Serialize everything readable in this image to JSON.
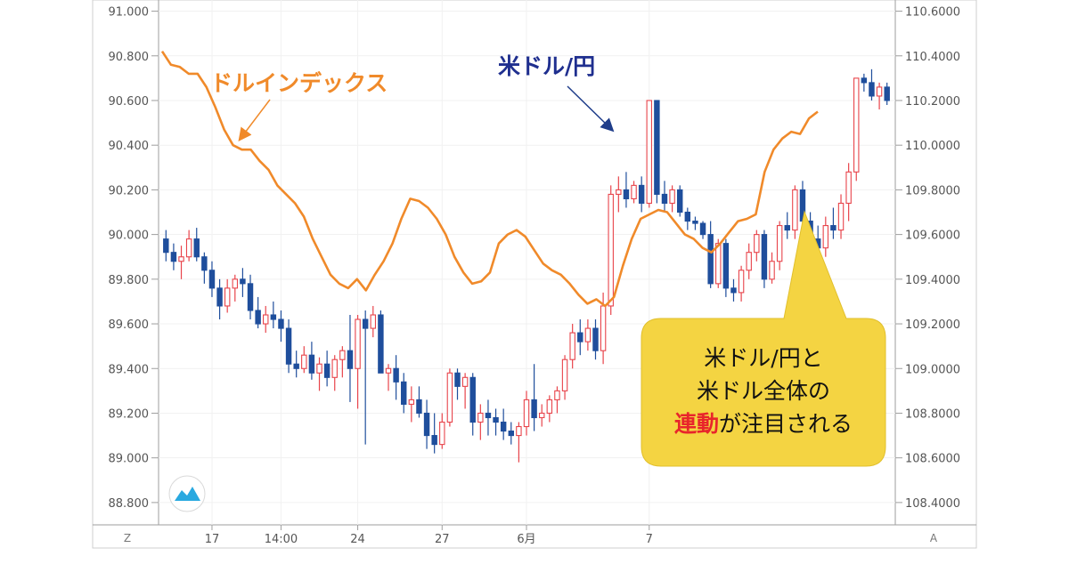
{
  "chart_data": {
    "type": "candlestick+line",
    "left_axis": {
      "ticks": [
        "91.000",
        "90.800",
        "90.600",
        "90.400",
        "90.200",
        "90.000",
        "89.800",
        "89.600",
        "89.400",
        "89.200",
        "89.000",
        "88.800"
      ],
      "ylim": [
        88.7,
        91.05
      ]
    },
    "right_axis": {
      "ticks": [
        "110.6000",
        "110.4000",
        "110.2000",
        "110.0000",
        "109.8000",
        "109.6000",
        "109.4000",
        "109.2000",
        "109.0000",
        "108.8000",
        "108.6000",
        "108.4000"
      ],
      "ylim": [
        108.3,
        110.65
      ]
    },
    "x_ticks": [
      "17",
      "14:00",
      "24",
      "27",
      "6月",
      "7"
    ],
    "x_tick_index": [
      6,
      15,
      25,
      36,
      47,
      63
    ],
    "corner_left": "Z",
    "corner_right": "A",
    "grid": true,
    "series": [
      {
        "name": "ドルインデックス",
        "axis": "left",
        "style": "line",
        "color": "#f08a2a",
        "values": [
          90.82,
          90.76,
          90.75,
          90.72,
          90.72,
          90.66,
          90.57,
          90.47,
          90.4,
          90.38,
          90.38,
          90.33,
          90.29,
          90.22,
          90.18,
          90.14,
          90.08,
          89.98,
          89.9,
          89.82,
          89.78,
          89.76,
          89.8,
          89.75,
          89.82,
          89.88,
          89.96,
          90.07,
          90.16,
          90.15,
          90.12,
          90.07,
          90.0,
          89.9,
          89.83,
          89.78,
          89.79,
          89.83,
          89.96,
          90.0,
          90.02,
          89.99,
          89.93,
          89.87,
          89.84,
          89.82,
          89.78,
          89.73,
          89.69,
          89.71,
          89.68,
          89.72,
          89.86,
          89.98,
          90.07,
          90.09,
          90.11,
          90.1,
          90.05,
          90.0,
          89.98,
          89.94,
          89.92,
          89.96,
          90.01,
          90.06,
          90.07,
          90.09,
          90.28,
          90.38,
          90.43,
          90.46,
          90.45,
          90.52,
          90.55
        ]
      },
      {
        "name": "米ドル/円",
        "axis": "right",
        "style": "candlestick",
        "up_color": "#e8444b",
        "down_color": "#1f4e9c",
        "ohlc": [
          [
            109.58,
            109.62,
            109.48,
            109.52
          ],
          [
            109.52,
            109.56,
            109.44,
            109.48
          ],
          [
            109.48,
            109.55,
            109.4,
            109.5
          ],
          [
            109.5,
            109.62,
            109.48,
            109.58
          ],
          [
            109.58,
            109.63,
            109.48,
            109.5
          ],
          [
            109.5,
            109.52,
            109.38,
            109.44
          ],
          [
            109.44,
            109.48,
            109.32,
            109.36
          ],
          [
            109.36,
            109.4,
            109.22,
            109.28
          ],
          [
            109.28,
            109.4,
            109.25,
            109.36
          ],
          [
            109.36,
            109.42,
            109.3,
            109.4
          ],
          [
            109.4,
            109.45,
            109.32,
            109.38
          ],
          [
            109.38,
            109.42,
            109.22,
            109.26
          ],
          [
            109.26,
            109.32,
            109.18,
            109.2
          ],
          [
            109.2,
            109.28,
            109.16,
            109.24
          ],
          [
            109.24,
            109.3,
            109.18,
            109.22
          ],
          [
            109.22,
            109.26,
            109.12,
            109.18
          ],
          [
            109.18,
            109.22,
            108.98,
            109.02
          ],
          [
            109.02,
            109.08,
            108.96,
            109.0
          ],
          [
            109.0,
            109.1,
            108.98,
            109.06
          ],
          [
            109.06,
            109.12,
            108.95,
            108.98
          ],
          [
            108.98,
            109.05,
            108.9,
            109.02
          ],
          [
            109.02,
            109.08,
            108.92,
            108.96
          ],
          [
            108.96,
            109.06,
            108.9,
            109.04
          ],
          [
            109.04,
            109.1,
            108.96,
            109.08
          ],
          [
            109.08,
            109.24,
            108.85,
            109.0
          ],
          [
            109.0,
            109.24,
            108.82,
            109.22
          ],
          [
            109.22,
            109.26,
            108.66,
            109.18
          ],
          [
            109.18,
            109.28,
            109.14,
            109.24
          ],
          [
            109.24,
            109.26,
            108.98,
            108.98
          ],
          [
            108.98,
            109.02,
            108.9,
            109.0
          ],
          [
            109.0,
            109.06,
            108.86,
            108.94
          ],
          [
            108.94,
            108.98,
            108.8,
            108.84
          ],
          [
            108.84,
            108.92,
            108.76,
            108.86
          ],
          [
            108.86,
            108.92,
            108.78,
            108.8
          ],
          [
            108.8,
            108.86,
            108.64,
            108.7
          ],
          [
            108.7,
            108.8,
            108.62,
            108.66
          ],
          [
            108.66,
            108.8,
            108.64,
            108.76
          ],
          [
            108.76,
            109.0,
            108.74,
            108.98
          ],
          [
            108.98,
            109.0,
            108.86,
            108.92
          ],
          [
            108.92,
            108.98,
            108.82,
            108.96
          ],
          [
            108.96,
            108.98,
            108.7,
            108.76
          ],
          [
            108.76,
            108.84,
            108.68,
            108.8
          ],
          [
            108.8,
            108.86,
            108.7,
            108.78
          ],
          [
            108.78,
            108.82,
            108.7,
            108.76
          ],
          [
            108.76,
            108.82,
            108.68,
            108.72
          ],
          [
            108.72,
            108.76,
            108.66,
            108.7
          ],
          [
            108.7,
            108.76,
            108.58,
            108.74
          ],
          [
            108.74,
            108.9,
            108.7,
            108.86
          ],
          [
            108.86,
            109.02,
            108.72,
            108.78
          ],
          [
            108.78,
            108.84,
            108.74,
            108.8
          ],
          [
            108.8,
            108.88,
            108.76,
            108.86
          ],
          [
            108.86,
            108.92,
            108.8,
            108.9
          ],
          [
            108.9,
            109.06,
            108.86,
            109.04
          ],
          [
            109.04,
            109.2,
            109.0,
            109.16
          ],
          [
            109.16,
            109.22,
            109.06,
            109.12
          ],
          [
            109.12,
            109.22,
            109.08,
            109.18
          ],
          [
            109.18,
            109.22,
            109.04,
            109.08
          ],
          [
            109.08,
            109.34,
            109.02,
            109.28
          ],
          [
            109.28,
            109.82,
            109.24,
            109.78
          ],
          [
            109.78,
            109.86,
            109.7,
            109.8
          ],
          [
            109.8,
            109.88,
            109.72,
            109.76
          ],
          [
            109.76,
            109.84,
            109.74,
            109.82
          ],
          [
            109.82,
            109.86,
            109.7,
            109.74
          ],
          [
            109.74,
            110.2,
            109.72,
            110.2
          ],
          [
            110.2,
            110.2,
            109.74,
            109.78
          ],
          [
            109.78,
            109.84,
            109.7,
            109.74
          ],
          [
            109.74,
            109.82,
            109.7,
            109.8
          ],
          [
            109.8,
            109.82,
            109.68,
            109.7
          ],
          [
            109.7,
            109.72,
            109.62,
            109.66
          ],
          [
            109.66,
            109.68,
            109.62,
            109.65
          ],
          [
            109.65,
            109.66,
            109.58,
            109.6
          ],
          [
            109.6,
            109.66,
            109.36,
            109.38
          ],
          [
            109.38,
            109.58,
            109.36,
            109.56
          ],
          [
            109.56,
            109.58,
            109.32,
            109.36
          ],
          [
            109.36,
            109.4,
            109.3,
            109.34
          ],
          [
            109.34,
            109.46,
            109.3,
            109.44
          ],
          [
            109.44,
            109.56,
            109.4,
            109.52
          ],
          [
            109.52,
            109.62,
            109.48,
            109.6
          ],
          [
            109.6,
            109.62,
            109.36,
            109.4
          ],
          [
            109.4,
            109.52,
            109.38,
            109.48
          ],
          [
            109.48,
            109.66,
            109.44,
            109.64
          ],
          [
            109.64,
            109.7,
            109.58,
            109.62
          ],
          [
            109.62,
            109.82,
            109.58,
            109.8
          ],
          [
            109.8,
            109.84,
            109.64,
            109.66
          ],
          [
            109.66,
            109.7,
            109.54,
            109.58
          ],
          [
            109.58,
            109.64,
            109.52,
            109.54
          ],
          [
            109.54,
            109.68,
            109.5,
            109.64
          ],
          [
            109.64,
            109.72,
            109.58,
            109.62
          ],
          [
            109.62,
            109.78,
            109.58,
            109.74
          ],
          [
            109.74,
            109.92,
            109.66,
            109.88
          ],
          [
            109.88,
            110.3,
            109.84,
            110.3
          ],
          [
            110.3,
            110.32,
            110.24,
            110.28
          ],
          [
            110.28,
            110.34,
            110.2,
            110.22
          ],
          [
            110.22,
            110.28,
            110.16,
            110.26
          ],
          [
            110.26,
            110.28,
            110.18,
            110.2
          ]
        ]
      }
    ],
    "annotations": {
      "dxy_label": "ドルインデックス",
      "usdjpy_label": "米ドル/円",
      "callout_line1": "米ドル/円と",
      "callout_line2": "米ドル全体の",
      "callout_highlight": "連動",
      "callout_rest": "が注目される"
    }
  }
}
